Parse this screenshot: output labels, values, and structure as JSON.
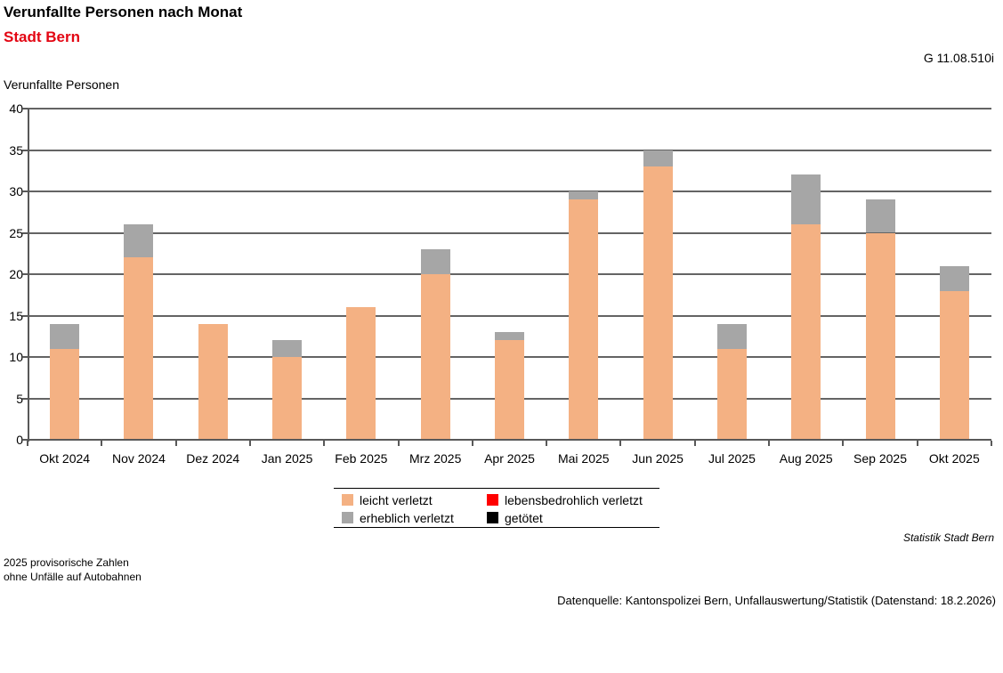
{
  "header": {
    "title": "Verunfallte Personen nach Monat",
    "subtitle": "Stadt Bern",
    "code": "G 11.08.510i"
  },
  "chart_data": {
    "type": "bar",
    "stacked": true,
    "title": "Verunfallte Personen nach Monat",
    "subtitle": "Stadt Bern",
    "ylabel": "Verunfallte Personen",
    "ylim": [
      0,
      40
    ],
    "ytick_step": 5,
    "grid": true,
    "legend_position": "bottom",
    "categories": [
      "Okt 2024",
      "Nov 2024",
      "Dez 2024",
      "Jan 2025",
      "Feb 2025",
      "Mrz 2025",
      "Apr 2025",
      "Mai 2025",
      "Jun 2025",
      "Jul 2025",
      "Aug 2025",
      "Sep 2025",
      "Okt 2025"
    ],
    "series": [
      {
        "name": "leicht verletzt",
        "color": "#F4B183",
        "values": [
          11,
          22,
          14,
          10,
          16,
          20,
          12,
          29,
          33,
          11,
          26,
          25,
          18
        ]
      },
      {
        "name": "erheblich verletzt",
        "color": "#A6A6A6",
        "values": [
          3,
          4,
          0,
          2,
          0,
          3,
          1,
          1,
          2,
          3,
          6,
          4,
          3
        ]
      },
      {
        "name": "lebensbedrohlich verletzt",
        "color": "#FF0000",
        "values": [
          0,
          0,
          0,
          0,
          0,
          0,
          0,
          0,
          0,
          0,
          0,
          0,
          0
        ]
      },
      {
        "name": "getötet",
        "color": "#000000",
        "values": [
          0,
          0,
          0,
          0,
          0,
          0,
          0,
          0,
          0,
          0,
          0,
          0,
          0
        ]
      }
    ],
    "totals": [
      14,
      26,
      14,
      12,
      16,
      23,
      13,
      30,
      35,
      14,
      32,
      29,
      21
    ]
  },
  "legend": {
    "items": [
      {
        "label": "leicht verletzt",
        "color": "#F4B183"
      },
      {
        "label": "lebensbedrohlich verletzt",
        "color": "#FF0000"
      },
      {
        "label": "erheblich verletzt",
        "color": "#A6A6A6"
      },
      {
        "label": "getötet",
        "color": "#000000"
      }
    ]
  },
  "footnotes": {
    "credit": "Statistik Stadt Bern",
    "note1": "2025 provisorische Zahlen",
    "note2": "ohne Unfälle auf Autobahnen",
    "source": "Datenquelle: Kantonspolizei Bern, Unfallauswertung/Statistik (Datenstand: 18.2.2026)"
  },
  "colors": {
    "subtitle_red": "#E30613",
    "gridline": "#646464",
    "axis": "#595959"
  }
}
